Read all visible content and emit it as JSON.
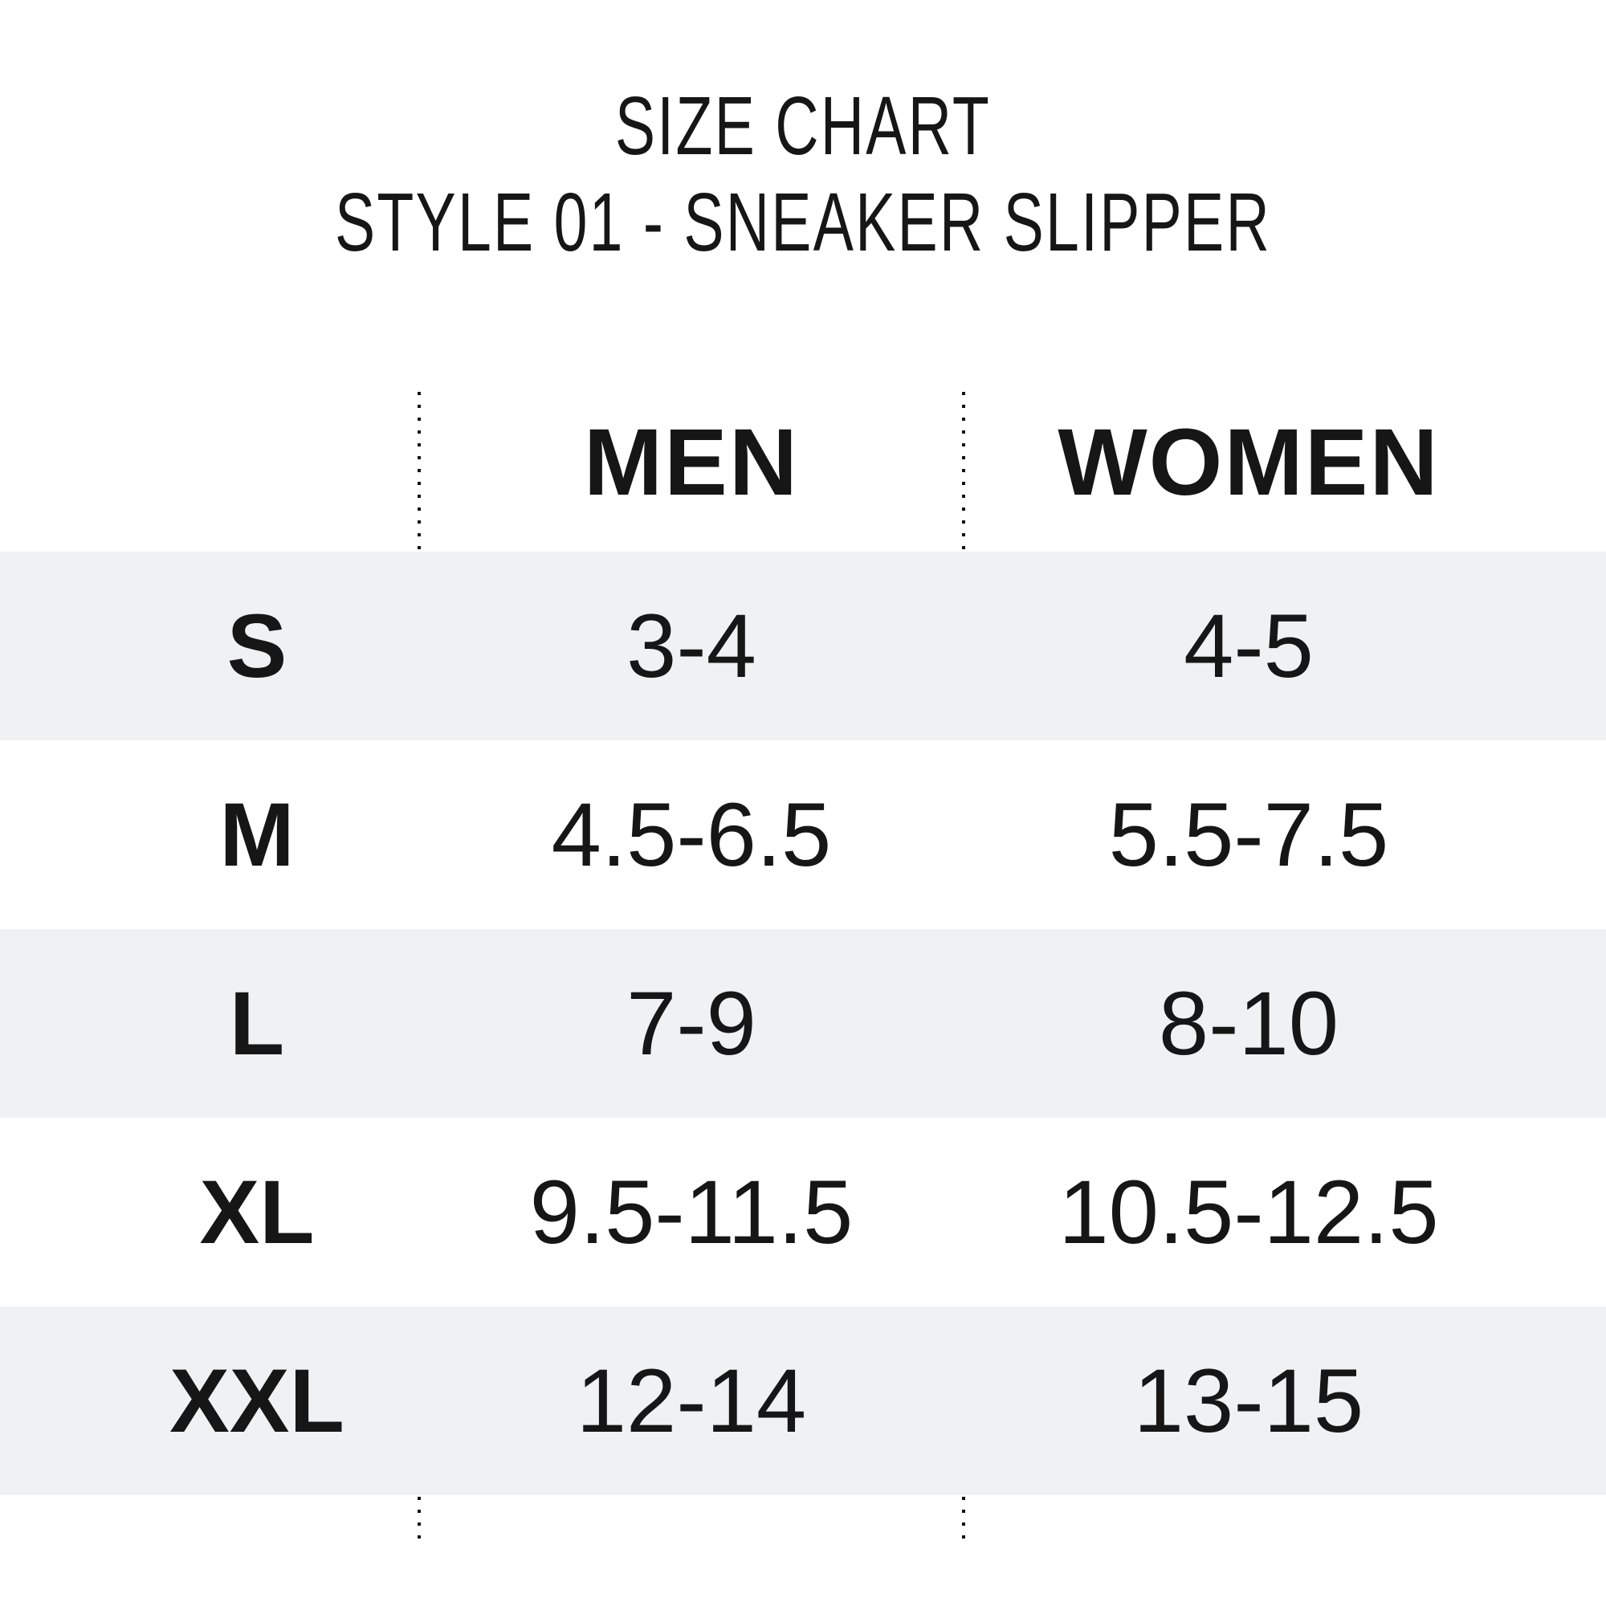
{
  "title": {
    "line1": "SIZE CHART",
    "line2": "STYLE 01 - SNEAKER SLIPPER"
  },
  "table": {
    "columns": {
      "men": "MEN",
      "women": "WOMEN"
    },
    "rows": [
      {
        "label": "S",
        "men": "3-4",
        "women": "4-5"
      },
      {
        "label": "M",
        "men": "4.5-6.5",
        "women": "5.5-7.5"
      },
      {
        "label": "L",
        "men": "7-9",
        "women": "8-10"
      },
      {
        "label": "XL",
        "men": "9.5-11.5",
        "women": "10.5-12.5"
      },
      {
        "label": "XXL",
        "men": "12-14",
        "women": "13-15"
      }
    ]
  },
  "chart_data": {
    "type": "table",
    "title": "SIZE CHART",
    "subtitle": "STYLE 01 - SNEAKER SLIPPER",
    "categories": [
      "S",
      "M",
      "L",
      "XL",
      "XXL"
    ],
    "series": [
      {
        "name": "MEN",
        "values": [
          "3-4",
          "4.5-6.5",
          "7-9",
          "9.5-11.5",
          "12-14"
        ]
      },
      {
        "name": "WOMEN",
        "values": [
          "4-5",
          "5.5-7.5",
          "8-10",
          "10.5-12.5",
          "13-15"
        ]
      }
    ],
    "layout_hints": {
      "striped_rows": true,
      "stripe_pattern": [
        "shaded",
        "white",
        "shaded",
        "white",
        "shaded"
      ],
      "column_dividers": "vertical dotted lines"
    }
  },
  "colors": {
    "background": "#ffffff",
    "row_stripe": "#f0f1f3",
    "text": "#161616",
    "divider_dots": "#121212"
  }
}
